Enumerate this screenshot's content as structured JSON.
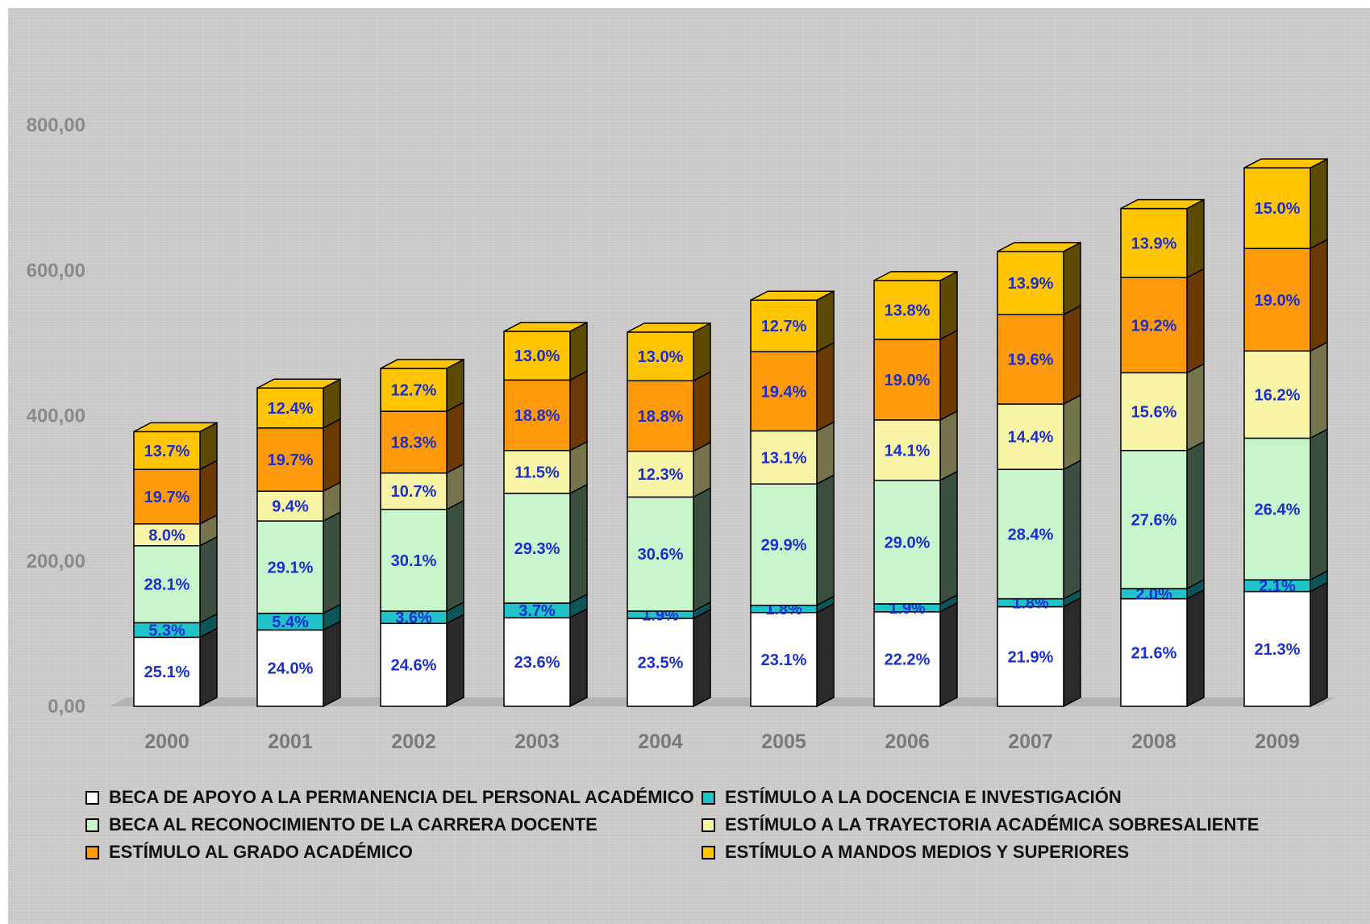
{
  "chart_data": {
    "type": "bar",
    "stacked": true,
    "three_d": true,
    "categories": [
      "2000",
      "2001",
      "2002",
      "2003",
      "2004",
      "2005",
      "2006",
      "2007",
      "2008",
      "2009"
    ],
    "ylim": [
      0,
      800
    ],
    "yticks": [
      "0,00",
      "200,00",
      "400,00",
      "600,00",
      "800,00"
    ],
    "ytick_values": [
      0,
      200,
      400,
      600,
      800
    ],
    "grid": false,
    "legend_position": "bottom",
    "series": [
      {
        "name": "BECA DE APOYO A LA PERMANENCIA DEL PERSONAL ACADÉMICO",
        "color": "#ffffff",
        "side_color": "#2a2a2a",
        "values": [
          95,
          105,
          114,
          122,
          121,
          129,
          130,
          137,
          148,
          158
        ],
        "labels": [
          "25.1%",
          "24.0%",
          "24.6%",
          "23.6%",
          "23.5%",
          "23.1%",
          "22.2%",
          "21.9%",
          "21.6%",
          "21.3%"
        ]
      },
      {
        "name": "ESTÍMULO A LA DOCENCIA E INVESTIGACIÓN",
        "color": "#1fc3c9",
        "side_color": "#0c5558",
        "values": [
          20,
          23,
          17,
          20,
          10,
          10,
          11,
          11,
          14,
          16
        ],
        "labels": [
          "5.3%",
          "5.4%",
          "3.6%",
          "3.7%",
          "1.9%",
          "1.8%",
          "1.9%",
          "1.8%",
          "2.0%",
          "2.1%"
        ]
      },
      {
        "name": "BECA AL RECONOCIMIENTO DE LA CARRERA DOCENTE",
        "color": "#c8f5cb",
        "side_color": "#3b4f40",
        "values": [
          106,
          127,
          140,
          151,
          157,
          167,
          170,
          178,
          190,
          195
        ],
        "labels": [
          "28.1%",
          "29.1%",
          "30.1%",
          "29.3%",
          "30.6%",
          "29.9%",
          "29.0%",
          "28.4%",
          "27.6%",
          "26.4%"
        ]
      },
      {
        "name": "ESTÍMULO A LA TRAYECTORIA ACADÉMICA SOBRESALIENTE",
        "color": "#f8f6a6",
        "side_color": "#76744c",
        "values": [
          30,
          41,
          50,
          59,
          63,
          73,
          83,
          90,
          107,
          120
        ],
        "labels": [
          "8.0%",
          "9.4%",
          "10.7%",
          "11.5%",
          "12.3%",
          "13.1%",
          "14.1%",
          "14.4%",
          "15.6%",
          "16.2%"
        ]
      },
      {
        "name": "ESTÍMULO AL GRADO ACADÉMICO",
        "color": "#ff9a0a",
        "side_color": "#6b3a00",
        "values": [
          75,
          87,
          85,
          97,
          97,
          109,
          111,
          123,
          131,
          141
        ],
        "labels": [
          "19.7%",
          "19.7%",
          "18.3%",
          "18.8%",
          "18.8%",
          "19.4%",
          "19.0%",
          "19.6%",
          "19.2%",
          "19.0%"
        ]
      },
      {
        "name": "ESTÍMULO A MANDOS MEDIOS Y SUPERIORES",
        "color": "#ffc600",
        "side_color": "#5c4a00",
        "values": [
          52,
          55,
          59,
          67,
          67,
          71,
          81,
          87,
          95,
          111
        ],
        "labels": [
          "13.7%",
          "12.4%",
          "12.7%",
          "13.0%",
          "13.0%",
          "12.7%",
          "13.8%",
          "13.9%",
          "13.9%",
          "15.0%"
        ]
      }
    ]
  }
}
